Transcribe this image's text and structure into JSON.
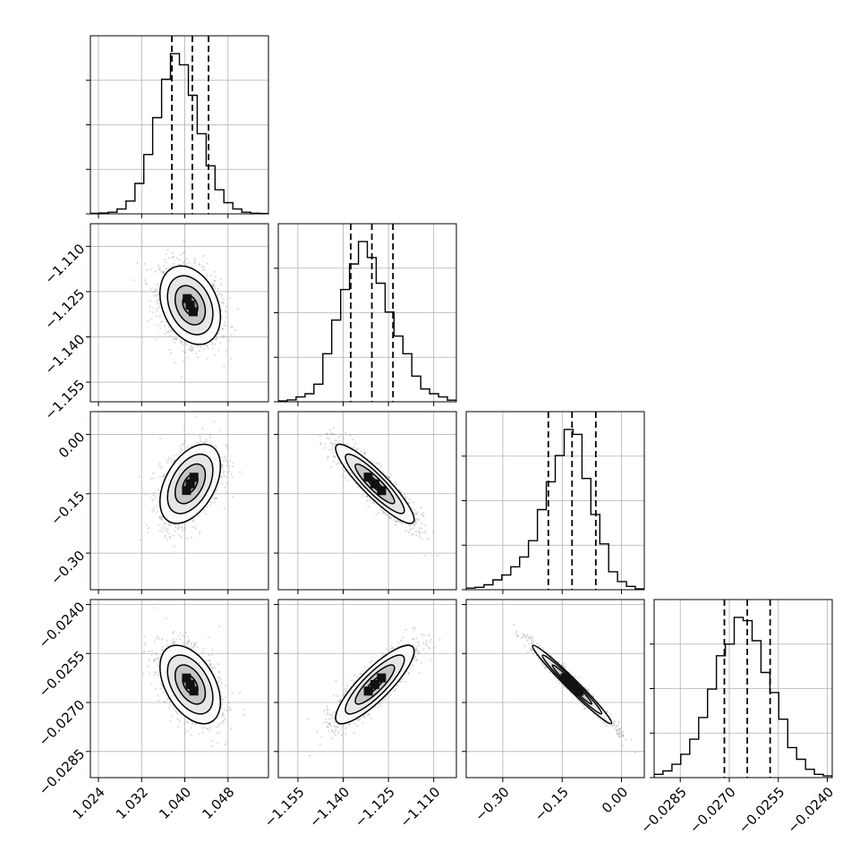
{
  "chart_data": {
    "type": "corner",
    "variables": [
      {
        "range": [
          1.0225,
          1.0555
        ],
        "ticks": [
          1.024,
          1.032,
          1.04,
          1.048
        ],
        "tick_labels": [
          "1.024",
          "1.032",
          "1.040",
          "1.048"
        ],
        "quantiles": [
          1.0376,
          1.0414,
          1.0444
        ],
        "mean": 1.041,
        "sd": 0.0028,
        "hist": [
          0.003,
          0.005,
          0.01,
          0.03,
          0.08,
          0.19,
          0.37,
          0.6,
          0.84,
          1.0,
          0.93,
          0.74,
          0.5,
          0.3,
          0.15,
          0.07,
          0.03,
          0.01,
          0.004,
          0.002
        ]
      },
      {
        "range": [
          -1.1615,
          -1.1025
        ],
        "ticks": [
          -1.155,
          -1.14,
          -1.125,
          -1.11
        ],
        "tick_labels": [
          "−1.155",
          "−1.140",
          "−1.125",
          "−1.110"
        ],
        "quantiles": [
          -1.1375,
          -1.1305,
          -1.1235
        ],
        "mean": -1.1295,
        "sd": 0.0065,
        "hist": [
          0.005,
          0.012,
          0.03,
          0.05,
          0.11,
          0.3,
          0.51,
          0.7,
          0.86,
          1.0,
          0.9,
          0.74,
          0.56,
          0.41,
          0.3,
          0.16,
          0.08,
          0.05,
          0.03,
          0.01
        ]
      },
      {
        "range": [
          -0.3925,
          0.0575
        ],
        "ticks": [
          -0.3,
          -0.15,
          0.0
        ],
        "tick_labels": [
          "−0.30",
          "−0.15",
          "0.00"
        ],
        "quantiles": [
          -0.185,
          -0.125,
          -0.065
        ],
        "mean": -0.125,
        "sd": 0.05,
        "hist": [
          0.01,
          0.015,
          0.03,
          0.06,
          0.09,
          0.14,
          0.2,
          0.3,
          0.49,
          0.66,
          0.82,
          0.98,
          0.95,
          0.68,
          0.46,
          0.28,
          0.11,
          0.05,
          0.02,
          0.005
        ]
      },
      {
        "range": [
          -0.0293,
          -0.02385
        ],
        "ticks": [
          -0.0285,
          -0.027,
          -0.0255,
          -0.024
        ],
        "tick_labels": [
          "−0.0285",
          "−0.0270",
          "−0.0255",
          "−0.0240"
        ],
        "quantiles": [
          -0.02715,
          -0.02645,
          -0.02575
        ],
        "mean": -0.02645,
        "sd": 0.0006,
        "hist": [
          0.02,
          0.04,
          0.08,
          0.14,
          0.23,
          0.36,
          0.53,
          0.73,
          0.8,
          0.96,
          0.94,
          0.82,
          0.63,
          0.51,
          0.35,
          0.18,
          0.11,
          0.05,
          0.02,
          0.01
        ]
      }
    ],
    "correlations": [
      [
        1.0,
        -0.3,
        0.45,
        -0.45
      ],
      [
        -0.3,
        1.0,
        -0.9,
        0.85
      ],
      [
        0.45,
        -0.9,
        1.0,
        -0.98
      ],
      [
        -0.45,
        0.85,
        -0.98,
        1.0
      ]
    ],
    "contour_levels_sigma": [
      0.5,
      1.0,
      1.5,
      2.0
    ],
    "grid": true,
    "colors": {
      "axes": "#000000",
      "grid": "#b0b0b0",
      "points": "#9a9a9a",
      "contour": "#000000"
    }
  }
}
